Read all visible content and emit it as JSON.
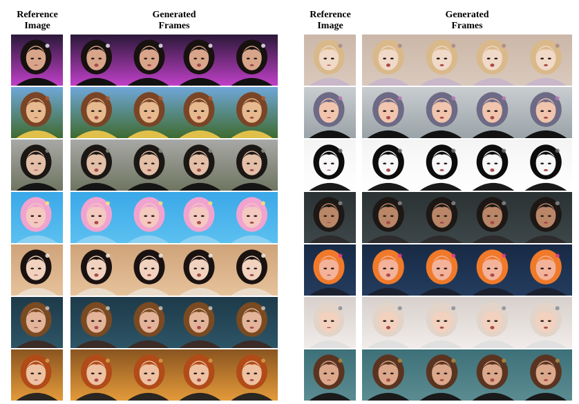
{
  "left_panel": {
    "reference_header": [
      "Reference",
      "Image"
    ],
    "generated_header": [
      "Generated",
      "Frames"
    ],
    "rows": [
      {
        "subject": "realistic woman, short dark hair, purple neon stage",
        "bg": "#2a1838",
        "bg2": "#c040c8",
        "hair": "#17110f",
        "skin": "#d9a58a",
        "shirt": "#111111",
        "accent": "#e8e8f0"
      },
      {
        "subject": "cartoon cowboy with brown hat, trees and sky",
        "bg": "#6fa7d8",
        "bg2": "#3f6b2f",
        "hair": "#7a4526",
        "skin": "#e7b98f",
        "shirt": "#e0c04a",
        "accent": "#b0562c"
      },
      {
        "subject": "realistic woman, black hair, black turtleneck, street",
        "bg": "#a8a8a6",
        "bg2": "#6e7560",
        "hair": "#1b1714",
        "skin": "#e3bfa8",
        "shirt": "#151515",
        "accent": "#8a8f80"
      },
      {
        "subject": "illustrated girl, pastel rainbow hair, blue background",
        "bg": "#3aa8e8",
        "bg2": "#5cc0f0",
        "hair": "#f1a3d0",
        "skin": "#f4c9c0",
        "shirt": "#8ad0f0",
        "accent": "#f7e27a"
      },
      {
        "subject": "woman with hair ornaments and blossoms, beige background",
        "bg": "#cfa37a",
        "bg2": "#e6c29b",
        "hair": "#1a1210",
        "skin": "#f0d2be",
        "shirt": "#e9dccb",
        "accent": "#f3eee8"
      },
      {
        "subject": "3D woman, long wavy brown hair, headband, dark teal background",
        "bg": "#1d3a4a",
        "bg2": "#2d5566",
        "hair": "#7a4a22",
        "skin": "#e4b49a",
        "shirt": "#3b2c28",
        "accent": "#c9c3b8"
      },
      {
        "subject": "3D woman, curly red hair, warm bokeh background",
        "bg": "#8a5520",
        "bg2": "#e39a3a",
        "hair": "#b14b18",
        "skin": "#edc1a2",
        "shirt": "#2a2621",
        "accent": "#d99b45"
      }
    ]
  },
  "right_panel": {
    "reference_header": [
      "Reference",
      "Image"
    ],
    "generated_header": [
      "Generated",
      "Frames"
    ],
    "rows": [
      {
        "subject": "anime girl, blonde bangs, beige background",
        "bg": "#cbb7a8",
        "bg2": "#d9c9bc",
        "hair": "#d9b98a",
        "skin": "#f1d9c8",
        "shirt": "#c8b7c8",
        "accent": "#a8888a"
      },
      {
        "subject": "3D character, short purple-gray hair, city background",
        "bg": "#c9cdd0",
        "bg2": "#9aa3a8",
        "hair": "#6d6a86",
        "skin": "#f0c4ad",
        "shirt": "#121212",
        "accent": "#b57bb4"
      },
      {
        "subject": "manga line art, dark spiky hair",
        "bg": "#f4f4f4",
        "bg2": "#ffffff",
        "hair": "#0c0c0c",
        "skin": "#f7f7f7",
        "shirt": "#1a1a1a",
        "accent": "#6a6a6a"
      },
      {
        "subject": "realistic man in suit, dark background",
        "bg": "#2a3234",
        "bg2": "#3d4648",
        "hair": "#1d1815",
        "skin": "#b98668",
        "shirt": "#2d2b2c",
        "accent": "#8a8a88"
      },
      {
        "subject": "illustrated girl, orange and pink flame hair, dark blue background",
        "bg": "#172a45",
        "bg2": "#243c5e",
        "hair": "#f07a2a",
        "skin": "#f3b29a",
        "shirt": "#1c2130",
        "accent": "#e0408a"
      },
      {
        "subject": "3D woman, platinum hair, bright bokeh background",
        "bg": "#d7d0cc",
        "bg2": "#f1ecea",
        "hair": "#e2d4c8",
        "skin": "#f2d1bf",
        "shirt": "#e0e0e0",
        "accent": "#8a8f9a"
      },
      {
        "subject": "3D woman, brown updo, teal background, choker",
        "bg": "#3d7078",
        "bg2": "#5b8c92",
        "hair": "#5a3420",
        "skin": "#dba88c",
        "shirt": "#1a1a1a",
        "accent": "#b08a3a"
      }
    ]
  }
}
